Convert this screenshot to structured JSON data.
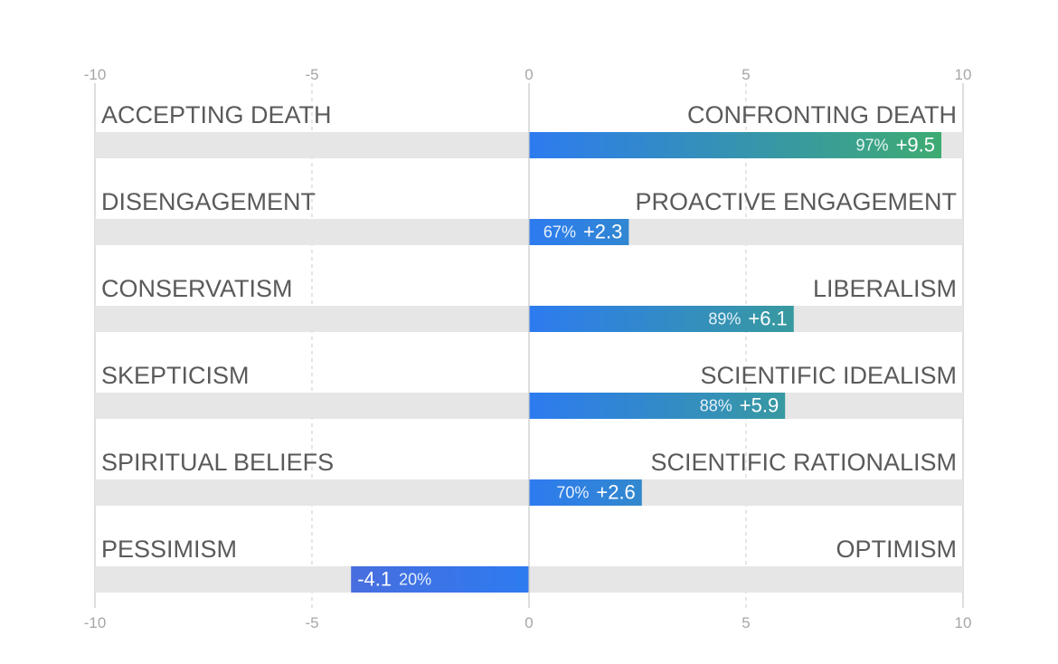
{
  "chart_data": {
    "type": "bar",
    "orientation": "horizontal-diverging",
    "xlim": [
      -10,
      10
    ],
    "ticks": [
      {
        "value": -10,
        "label": "-10"
      },
      {
        "value": -5,
        "label": "-5"
      },
      {
        "value": 0,
        "label": "0"
      },
      {
        "value": 5,
        "label": "5"
      },
      {
        "value": 10,
        "label": "10"
      }
    ],
    "grid": "dashed vertical at -5 and 5",
    "rows": [
      {
        "left_label": "ACCEPTING DEATH",
        "right_label": "CONFRONTING DEATH",
        "value": 9.5,
        "value_label": "+9.5",
        "percent_label": "97%"
      },
      {
        "left_label": "DISENGAGEMENT",
        "right_label": "PROACTIVE ENGAGEMENT",
        "value": 2.3,
        "value_label": "+2.3",
        "percent_label": "67%"
      },
      {
        "left_label": "CONSERVATISM",
        "right_label": "LIBERALISM",
        "value": 6.1,
        "value_label": "+6.1",
        "percent_label": "89%"
      },
      {
        "left_label": "SKEPTICISM",
        "right_label": "SCIENTIFIC IDEALISM",
        "value": 5.9,
        "value_label": "+5.9",
        "percent_label": "88%"
      },
      {
        "left_label": "SPIRITUAL BELIEFS",
        "right_label": "SCIENTIFIC RATIONALISM",
        "value": 2.6,
        "value_label": "+2.6",
        "percent_label": "70%"
      },
      {
        "left_label": "PESSIMISM",
        "right_label": "OPTIMISM",
        "value": -4.1,
        "value_label": "-4.1",
        "percent_label": "20%"
      }
    ],
    "colors": {
      "track": "#e6e6e6",
      "bar_near_zero": "#2d7bf0",
      "bar_positive_end": "#3fae6b",
      "bar_negative_end": "#6f5bc6",
      "grid": "#d4d4d4",
      "axis": "#c8c8c8"
    }
  }
}
